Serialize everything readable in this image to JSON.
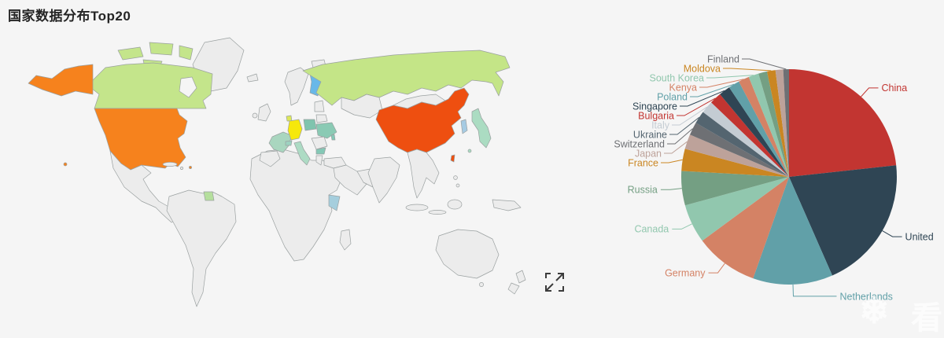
{
  "page": {
    "title": "国家数据分布Top20",
    "background": "#f5f5f5"
  },
  "chart_data": {
    "type": "pie",
    "title": "国家数据分布Top20",
    "legend_position": "none",
    "label_style": "outside with leader lines, label text colored same as slice",
    "note": "shares estimated from slice angles; two tiny slices have hidden labels",
    "series": [
      {
        "name": "China",
        "share": 23.1,
        "color": "#c23531",
        "label_shown": true
      },
      {
        "name": "United",
        "share": 20.0,
        "color": "#2f4554",
        "label_shown": true
      },
      {
        "name": "Netherlands",
        "share": 11.9,
        "color": "#61a0a8",
        "label_shown": true
      },
      {
        "name": "Germany",
        "share": 9.4,
        "color": "#d48265",
        "label_shown": true
      },
      {
        "name": "Canada",
        "share": 5.8,
        "color": "#91c7ae",
        "label_shown": true
      },
      {
        "name": "Russia",
        "share": 5.1,
        "color": "#749f83",
        "label_shown": true
      },
      {
        "name": "France",
        "share": 3.3,
        "color": "#ca8622",
        "label_shown": true
      },
      {
        "name": "Japan",
        "share": 2.2,
        "color": "#bda29a",
        "label_shown": true
      },
      {
        "name": "Switzerland",
        "share": 1.95,
        "color": "#6e7074",
        "label_shown": true
      },
      {
        "name": "Ukraine",
        "share": 1.9,
        "color": "#546570",
        "label_shown": true
      },
      {
        "name": "Italy",
        "share": 1.85,
        "color": "#c4ccd3",
        "label_shown": true
      },
      {
        "name": "Bulgaria",
        "share": 1.75,
        "color": "#c23531",
        "label_shown": true
      },
      {
        "name": "Singapore",
        "share": 1.7,
        "color": "#2f4554",
        "label_shown": true
      },
      {
        "name": "Poland",
        "share": 1.65,
        "color": "#61a0a8",
        "label_shown": true
      },
      {
        "name": "Kenya",
        "share": 1.6,
        "color": "#d48265",
        "label_shown": true
      },
      {
        "name": "South Korea",
        "share": 1.5,
        "color": "#91c7ae",
        "label_shown": true
      },
      {
        "name": "",
        "share": 1.3,
        "color": "#749f83",
        "label_shown": false
      },
      {
        "name": "Moldova",
        "share": 1.25,
        "color": "#ca8622",
        "label_shown": true
      },
      {
        "name": "",
        "share": 1.15,
        "color": "#bda29a",
        "label_shown": false
      },
      {
        "name": "Finland",
        "share": 0.85,
        "color": "#6e7074",
        "label_shown": true
      }
    ]
  },
  "map": {
    "type": "world-choropleth",
    "default_fill": "#ececec",
    "border_color": "#9aa0a0",
    "fills": {
      "usa": "#f6821d",
      "china": "#ee4f10",
      "canada": "#c4e58b",
      "russia": "#c4e587",
      "guyana": "#b5df9d",
      "germany": "#f6e80b",
      "netherlands": "#dce75a",
      "finland": "#68b8e8",
      "south-korea": "#a6cbe3",
      "japan": "#abdcc2",
      "kenya": "#a5cedd",
      "poland": "#7fc4ae",
      "ukraine": "#8acab4",
      "france": "#a9d6bf",
      "italy": "#addbc4",
      "switzerland": "#9dd2c0",
      "bulgaria": "#84c8b6",
      "moldova": "#84c8b6"
    }
  },
  "toolbox": {
    "fullscreen_icon": "expand-icon",
    "icon_color": "#3c3c3c"
  },
  "watermark": {
    "glyphs": [
      "❄",
      "看"
    ]
  }
}
